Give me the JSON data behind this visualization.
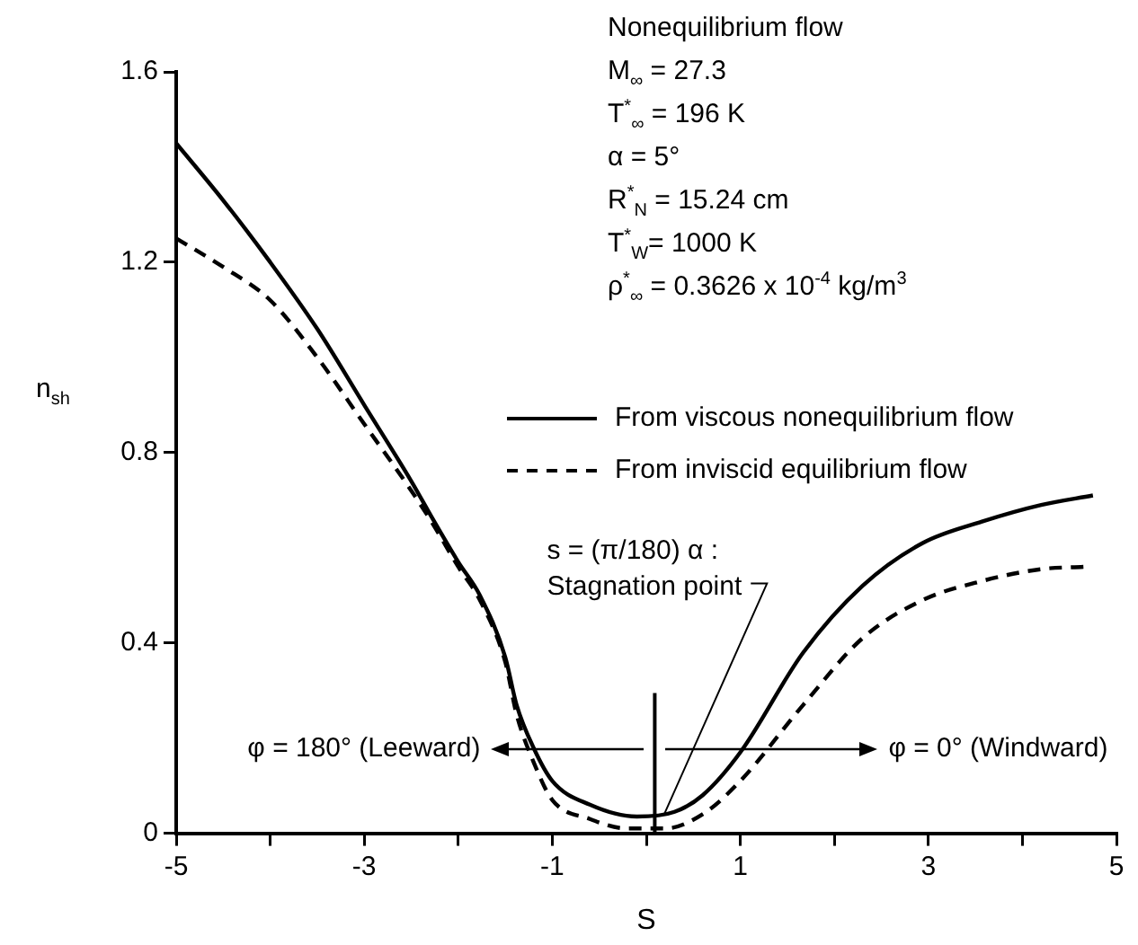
{
  "chart_data": {
    "type": "line",
    "xlabel": "S",
    "ylabel": "n$_{sh}$",
    "xlim": [
      -5,
      5
    ],
    "xticks": [
      -5,
      {
        "value": -4,
        "label": null
      },
      -3,
      {
        "value": -2,
        "label": null
      },
      -1,
      {
        "value": 0,
        "label": null
      },
      1,
      {
        "value": 2,
        "label": null
      },
      3,
      {
        "value": 4,
        "label": null
      },
      5
    ],
    "ylim": [
      0,
      1.6
    ],
    "yticks": [
      0,
      0.4,
      0.8,
      1.2,
      1.6
    ],
    "grid": false,
    "legend": "right",
    "marker": "none",
    "series": [
      {
        "name": "From viscous nonequilibrium flow",
        "color": "#000000",
        "line_style": "solid",
        "x": [
          -5,
          -4.5,
          -4,
          -3.5,
          -3,
          -2.5,
          -2.27,
          -2,
          -1.77,
          -1.5,
          -1.38,
          -1.2,
          -1,
          -0.6,
          -0.1,
          0.3,
          0.6,
          1,
          1.67,
          2.3,
          2.94,
          3.57,
          4.2,
          4.75
        ],
        "values": [
          1.45,
          1.33,
          1.2,
          1.06,
          0.9,
          0.74,
          0.66,
          0.57,
          0.5,
          0.37,
          0.27,
          0.18,
          0.11,
          0.06,
          0.035,
          0.045,
          0.08,
          0.17,
          0.38,
          0.52,
          0.61,
          0.655,
          0.69,
          0.71
        ]
      },
      {
        "name": "From inviscid equilibrium flow",
        "color": "#000000",
        "line_style": "dashed",
        "x": [
          -5,
          -4.5,
          -4,
          -3.5,
          -3,
          -2.5,
          -2.27,
          -2,
          -1.77,
          -1.5,
          -1.38,
          -1.2,
          -1,
          -0.6,
          -0.2,
          0.2,
          0.6,
          1,
          1.67,
          2.3,
          2.94,
          3.57,
          4.2,
          4.65
        ],
        "values": [
          1.25,
          1.19,
          1.12,
          1.0,
          0.86,
          0.72,
          0.65,
          0.56,
          0.49,
          0.36,
          0.25,
          0.15,
          0.07,
          0.03,
          0.01,
          0.01,
          0.04,
          0.11,
          0.27,
          0.41,
          0.49,
          0.53,
          0.555,
          0.56
        ]
      }
    ],
    "ref_lines": [
      {
        "axis": "x",
        "value": 0.09,
        "label": "s = (π/180) α :\nStagnation point"
      }
    ],
    "annotations": [
      "Nonequilibrium flow",
      "M$_{∞}$ = 27.3",
      "T$^{*}$$_{∞}$ = 196 K",
      "α = 5°",
      "R$^{*}$$_{N}$ = 15.24 cm",
      "T$^{*}$$_{W}$= 1000 K",
      "ρ$^{*}$$_{∞}$ = 0.3626 x 10$^{-4}$ kg/m$^{3}$",
      "φ = 180° (Leeward)",
      "φ = 0° (Windward)"
    ]
  }
}
